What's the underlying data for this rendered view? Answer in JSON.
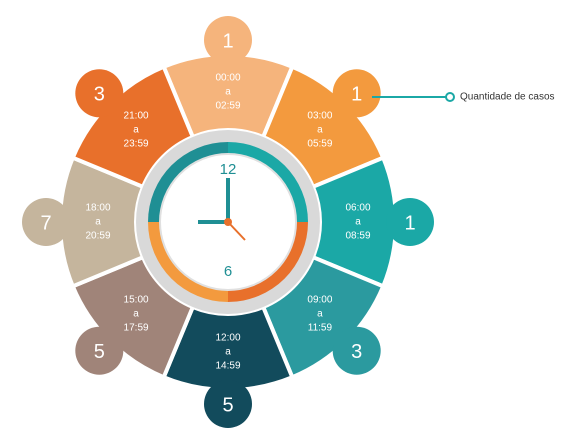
{
  "segments": [
    {
      "start": "00:00",
      "sep": "a",
      "end": "02:59",
      "count": "1",
      "color": "#f5b47c"
    },
    {
      "start": "03:00",
      "sep": "a",
      "end": "05:59",
      "count": "1",
      "color": "#f39a3e"
    },
    {
      "start": "06:00",
      "sep": "a",
      "end": "08:59",
      "count": "1",
      "color": "#1ba8a6"
    },
    {
      "start": "09:00",
      "sep": "a",
      "end": "11:59",
      "count": "3",
      "color": "#2b9a9f"
    },
    {
      "start": "12:00",
      "sep": "a",
      "end": "14:59",
      "count": "5",
      "color": "#124b5c"
    },
    {
      "start": "15:00",
      "sep": "a",
      "end": "17:59",
      "count": "5",
      "color": "#a08479"
    },
    {
      "start": "18:00",
      "sep": "a",
      "end": "20:59",
      "count": "7",
      "color": "#c5b59d"
    },
    {
      "start": "21:00",
      "sep": "a",
      "end": "23:59",
      "count": "3",
      "color": "#e8702b"
    }
  ],
  "legend": "Quantidade de casos",
  "clock": {
    "top": "12",
    "bottom": "6"
  }
}
